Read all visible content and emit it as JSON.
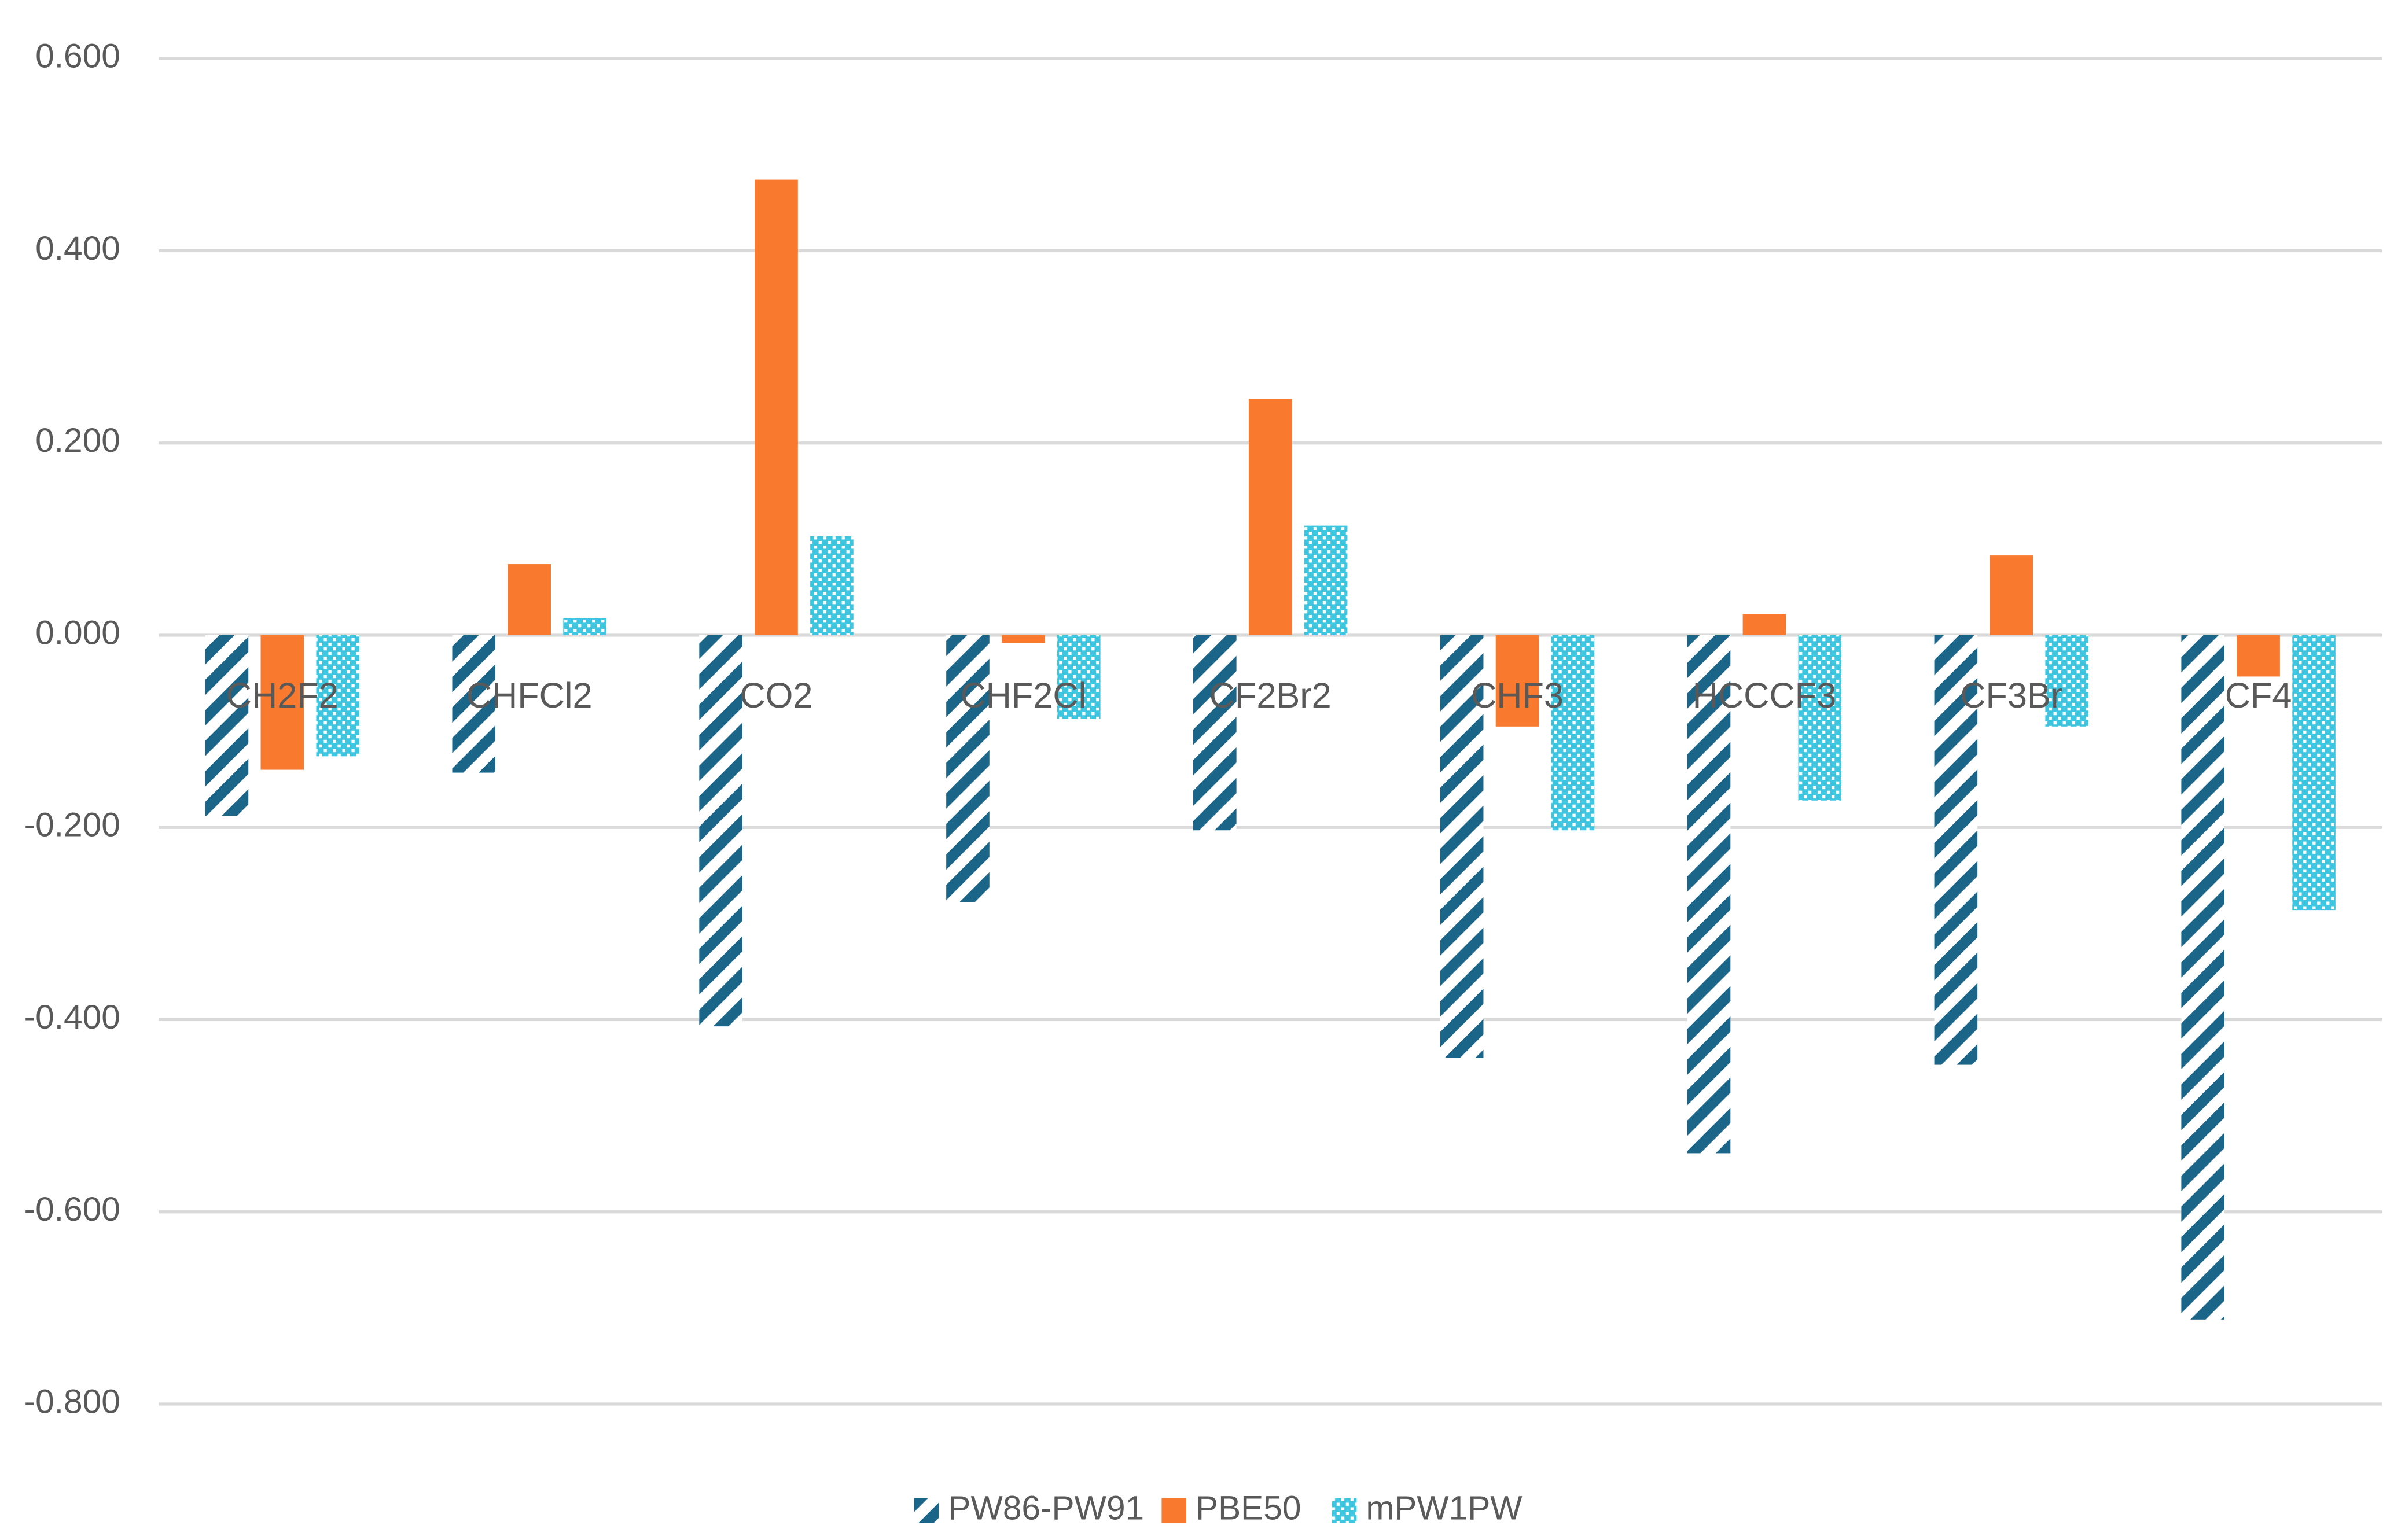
{
  "chart_data": {
    "type": "bar",
    "categories": [
      "CH2F2",
      "CHFCl2",
      "CO2",
      "CHF2Cl",
      "CF2Br2",
      "CHF3",
      "HCCCF3",
      "CF3Br",
      "CF4"
    ],
    "series": [
      {
        "name": "PW86-PW91",
        "color": "#1b6589",
        "pattern": "diagonal",
        "values": [
          -0.188,
          -0.143,
          -0.407,
          -0.278,
          -0.203,
          -0.44,
          -0.539,
          -0.447,
          -0.712
        ]
      },
      {
        "name": "PBE50",
        "color": "#f97a2e",
        "pattern": "solid",
        "values": [
          -0.14,
          0.074,
          0.474,
          -0.008,
          0.246,
          -0.095,
          0.022,
          0.083,
          -0.043
        ]
      },
      {
        "name": "mPW1PW",
        "color": "#3ec6e0",
        "pattern": "dots",
        "values": [
          -0.126,
          0.018,
          0.103,
          -0.087,
          0.114,
          -0.203,
          -0.172,
          -0.095,
          -0.286
        ]
      }
    ],
    "ylim": [
      -0.8,
      0.6
    ],
    "yticks": [
      {
        "value": -0.8,
        "label": "-0.800"
      },
      {
        "value": -0.6,
        "label": "-0.600"
      },
      {
        "value": -0.4,
        "label": "-0.400"
      },
      {
        "value": -0.2,
        "label": "-0.200"
      },
      {
        "value": 0,
        "label": "0.000"
      },
      {
        "value": 0.2,
        "label": "0.200"
      },
      {
        "value": 0.4,
        "label": "0.400"
      },
      {
        "value": 0.6,
        "label": "0.600"
      }
    ],
    "grid": true,
    "legend": "bottom"
  }
}
